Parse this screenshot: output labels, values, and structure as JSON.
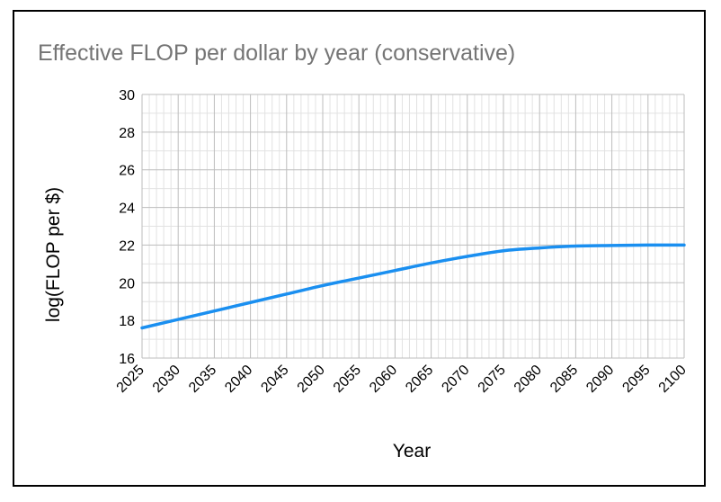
{
  "chart_data": {
    "type": "line",
    "title": "Effective FLOP per dollar by year (conservative)",
    "xlabel": "Year",
    "ylabel": "log(FLOP per $)",
    "xlim": [
      2025,
      2100
    ],
    "ylim": [
      16,
      30
    ],
    "x_ticks": [
      "2025",
      "2030",
      "2035",
      "2040",
      "2045",
      "2050",
      "2055",
      "2060",
      "2065",
      "2070",
      "2075",
      "2080",
      "2085",
      "2090",
      "2095",
      "2100"
    ],
    "y_ticks": [
      "16",
      "18",
      "20",
      "22",
      "24",
      "26",
      "28",
      "30"
    ],
    "grid": true,
    "legend": "none",
    "series": [
      {
        "name": "log(FLOP per $)",
        "color": "#1a8ff0",
        "x": [
          2025,
          2030,
          2035,
          2040,
          2045,
          2050,
          2055,
          2060,
          2065,
          2070,
          2075,
          2080,
          2085,
          2090,
          2095,
          2100
        ],
        "values": [
          17.6,
          18.05,
          18.5,
          18.95,
          19.4,
          19.85,
          20.25,
          20.65,
          21.05,
          21.4,
          21.7,
          21.85,
          21.95,
          21.98,
          22.0,
          22.0
        ]
      }
    ]
  }
}
